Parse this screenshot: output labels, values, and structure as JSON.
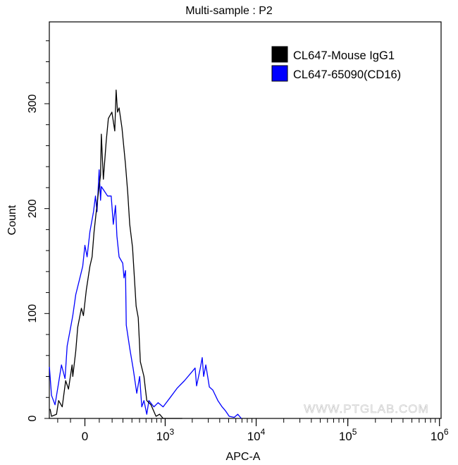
{
  "chart_data": {
    "type": "line",
    "title": "Multi-sample : P2",
    "xlabel": "APC-A",
    "ylabel": "Count",
    "xscale": "biexponential",
    "xlim": [
      -275,
      1000000
    ],
    "ylim": [
      0,
      378
    ],
    "x_ticks": [
      {
        "value": 0,
        "base": "0",
        "exp": ""
      },
      {
        "value": 1000,
        "base": "10",
        "exp": "3"
      },
      {
        "value": 10000,
        "base": "10",
        "exp": "4"
      },
      {
        "value": 100000,
        "base": "10",
        "exp": "5"
      },
      {
        "value": 1000000,
        "base": "10",
        "exp": "6"
      }
    ],
    "y_ticks": [
      0,
      100,
      200,
      300
    ],
    "grid": false,
    "legend_position": "top-right",
    "series": [
      {
        "name": "CL647-Mouse IgG1",
        "color": "#000000",
        "x": [
          -268,
          -255,
          -210,
          -192,
          -163,
          -136,
          -115,
          -89,
          -84,
          -63,
          -49,
          -24,
          -10,
          10,
          34,
          49,
          63,
          89,
          109,
          115,
          130,
          152,
          169,
          198,
          223,
          235,
          248,
          262,
          290,
          327,
          351,
          374,
          407,
          453,
          482,
          512,
          566,
          612,
          687,
          786,
          863,
          947,
          1553
        ],
        "y": [
          9,
          2,
          4,
          17,
          11,
          36,
          28,
          51,
          40,
          64,
          87,
          105,
          98,
          123,
          145,
          154,
          178,
          210,
          232,
          271,
          228,
          264,
          286,
          292,
          274,
          313,
          292,
          296,
          277,
          242,
          215,
          185,
          163,
          107,
          96,
          54,
          40,
          17,
          13,
          2,
          4,
          0,
          0
        ]
      },
      {
        "name": "CL647-65090(CD16)",
        "color": "#0000ff",
        "x": [
          -275,
          -255,
          -223,
          -192,
          -169,
          -141,
          -125,
          -99,
          -84,
          -63,
          -34,
          -15,
          0,
          15,
          34,
          59,
          73,
          84,
          99,
          109,
          115,
          136,
          163,
          192,
          210,
          229,
          242,
          262,
          298,
          311,
          327,
          335,
          374,
          416,
          462,
          502,
          533,
          566,
          612,
          649,
          742,
          831,
          947,
          1139,
          1367,
          1640,
          1965,
          2149,
          2230,
          2439,
          2572,
          2667,
          2816,
          3079,
          3366,
          3816,
          4249,
          4648,
          5081,
          5759,
          6298,
          6889
        ],
        "y": [
          49,
          22,
          13,
          34,
          51,
          38,
          69,
          87,
          98,
          118,
          134,
          145,
          165,
          154,
          178,
          197,
          212,
          197,
          237,
          208,
          221,
          217,
          212,
          212,
          185,
          203,
          174,
          154,
          148,
          134,
          141,
          89,
          67,
          47,
          24,
          40,
          11,
          17,
          4,
          17,
          11,
          15,
          11,
          20,
          29,
          36,
          44,
          48,
          31,
          47,
          58,
          40,
          51,
          30,
          27,
          17,
          11,
          7,
          2,
          1,
          4,
          0
        ]
      }
    ]
  },
  "watermark": "WWW.PTGLAB.COM"
}
